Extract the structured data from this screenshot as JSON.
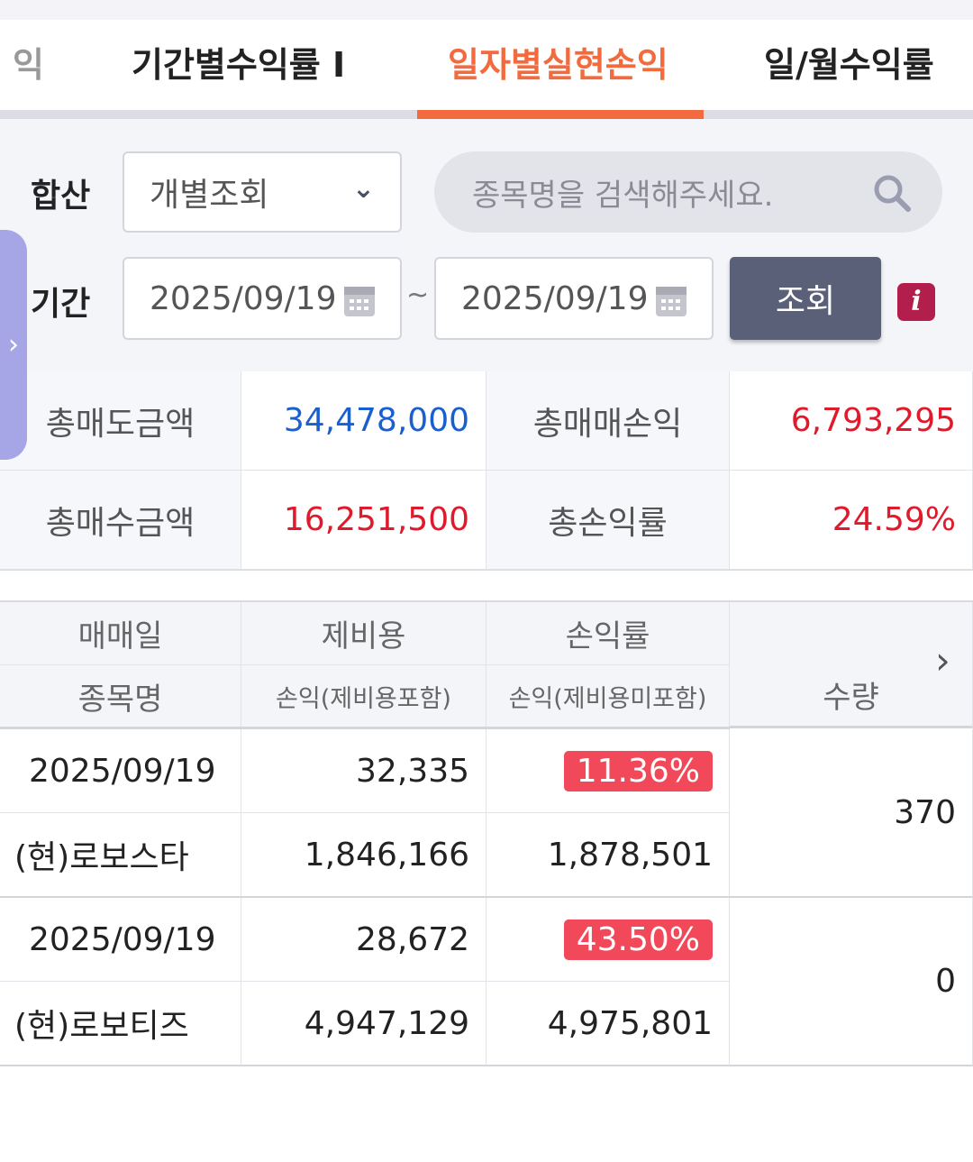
{
  "tabs": [
    {
      "label": "익"
    },
    {
      "label": "기간별수익률 I"
    },
    {
      "label": "일자별실현손익",
      "active": true
    },
    {
      "label": "일/월수익률"
    }
  ],
  "filter": {
    "sum_label": "합산",
    "sum_select": "개별조회",
    "search_placeholder": "종목명을 검색해주세요.",
    "period_label": "기간",
    "start_date": "2025/09/19",
    "separator": "~",
    "end_date": "2025/09/19",
    "query_button": "조회",
    "info_icon": "i"
  },
  "summary": {
    "total_sell_label": "총매도금액",
    "total_sell": "34,478,000",
    "total_pl_label": "총매매손익",
    "total_pl": "6,793,295",
    "total_buy_label": "총매수금액",
    "total_buy": "16,251,500",
    "total_rate_label": "총손익률",
    "total_rate": "24.59%"
  },
  "table": {
    "headers": {
      "date": "매매일",
      "fee": "제비용",
      "rate": "손익률",
      "name": "종목명",
      "pl_incl": "손익(제비용포함)",
      "pl_excl": "손익(제비용미포함)",
      "qty": "수량"
    },
    "rows": [
      {
        "date": "2025/09/19",
        "fee": "32,335",
        "rate": "11.36%",
        "name": "(현)로보스타",
        "pl_incl": "1,846,166",
        "pl_excl": "1,878,501",
        "qty": "370"
      },
      {
        "date": "2025/09/19",
        "fee": "28,672",
        "rate": "43.50%",
        "name": "(현)로보티즈",
        "pl_incl": "4,947,129",
        "pl_excl": "4,975,801",
        "qty": "0"
      }
    ]
  },
  "colors": {
    "accent": "#f26a3d",
    "positive": "#e0192b",
    "negative": "#1a5fd0",
    "button": "#5b6079"
  }
}
